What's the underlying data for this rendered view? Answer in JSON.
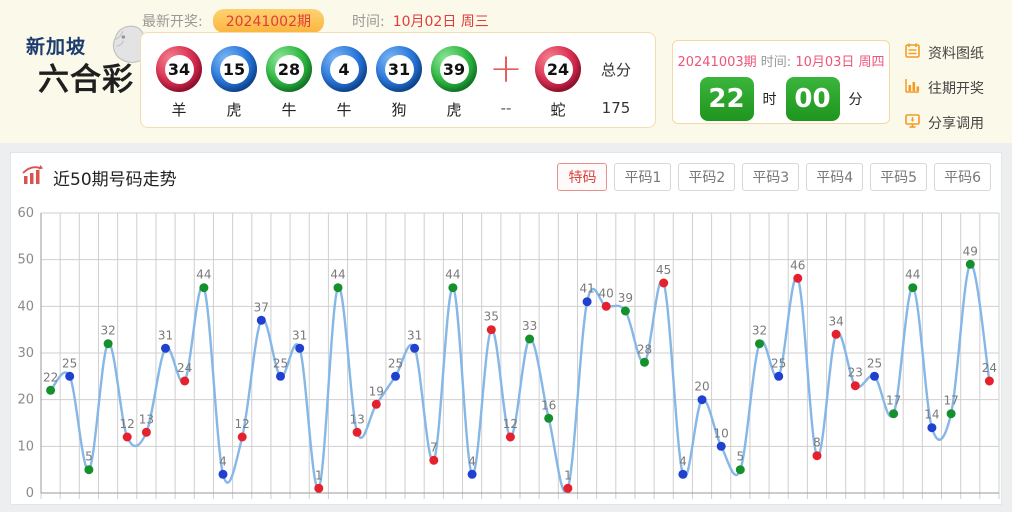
{
  "logo": {
    "line1": "新加坡",
    "line2": "六合彩"
  },
  "latest": {
    "label": "最新开奖:",
    "period": "20241002期",
    "time_label": "时间:",
    "time_value": "10月02日 周三"
  },
  "draw": {
    "balls": [
      {
        "num": "34",
        "color": "red",
        "zodiac": "羊"
      },
      {
        "num": "15",
        "color": "blue",
        "zodiac": "虎"
      },
      {
        "num": "28",
        "color": "green",
        "zodiac": "牛"
      },
      {
        "num": "4",
        "color": "blue",
        "zodiac": "牛"
      },
      {
        "num": "31",
        "color": "blue",
        "zodiac": "狗"
      },
      {
        "num": "39",
        "color": "green",
        "zodiac": "虎"
      }
    ],
    "plus_sign": "+",
    "plus_zodiac": "--",
    "special": {
      "num": "24",
      "color": "red",
      "zodiac": "蛇"
    },
    "total_label": "总分",
    "total_value": "175"
  },
  "next_draw": {
    "period": "20241003期",
    "time_label": "时间:",
    "time_value": "10月03日 周四",
    "hour": "22",
    "hour_unit": "时",
    "minute": "00",
    "minute_unit": "分"
  },
  "side_buttons": [
    {
      "name": "datasheet-button",
      "icon": "notebook-icon",
      "label": "资料图纸"
    },
    {
      "name": "history-button",
      "icon": "bar-chart-icon",
      "label": "往期开奖"
    },
    {
      "name": "share-button",
      "icon": "share-icon",
      "label": "分享调用"
    }
  ],
  "trend": {
    "title": "近50期号码走势",
    "tabs": [
      {
        "label": "特码",
        "active": true
      },
      {
        "label": "平码1",
        "active": false
      },
      {
        "label": "平码2",
        "active": false
      },
      {
        "label": "平码3",
        "active": false
      },
      {
        "label": "平码4",
        "active": false
      },
      {
        "label": "平码5",
        "active": false
      },
      {
        "label": "平码6",
        "active": false
      }
    ]
  },
  "chart_data": {
    "type": "line",
    "title": "近50期号码走势",
    "x_description": "last 50 draws, oldest to newest, no x tick labels",
    "values": [
      22,
      25,
      5,
      32,
      12,
      13,
      31,
      24,
      44,
      4,
      12,
      37,
      25,
      31,
      1,
      44,
      13,
      19,
      25,
      31,
      7,
      44,
      4,
      35,
      12,
      33,
      16,
      1,
      41,
      40,
      39,
      28,
      45,
      4,
      20,
      10,
      5,
      32,
      25,
      46,
      8,
      34,
      23,
      25,
      17,
      44,
      14,
      17,
      49,
      24
    ],
    "colors": [
      "green",
      "blue",
      "green",
      "green",
      "red",
      "red",
      "blue",
      "red",
      "green",
      "blue",
      "red",
      "blue",
      "blue",
      "blue",
      "red",
      "green",
      "red",
      "red",
      "blue",
      "blue",
      "red",
      "green",
      "blue",
      "red",
      "red",
      "green",
      "green",
      "red",
      "blue",
      "red",
      "green",
      "green",
      "red",
      "blue",
      "blue",
      "blue",
      "green",
      "green",
      "blue",
      "red",
      "red",
      "red",
      "red",
      "blue",
      "green",
      "green",
      "blue",
      "green",
      "green",
      "red"
    ],
    "ylim": [
      0,
      60
    ],
    "yticks": [
      0,
      10,
      20,
      30,
      40,
      50,
      60
    ],
    "grid": true,
    "legend": "none",
    "line_color": "#85b7e7",
    "color_map": {
      "red": "#e6212e",
      "blue": "#2040d0",
      "green": "#15902c"
    },
    "label_color": "#7a7a7a",
    "axis_color": "#9a9a9a",
    "grid_color": "#cfcfcf"
  }
}
